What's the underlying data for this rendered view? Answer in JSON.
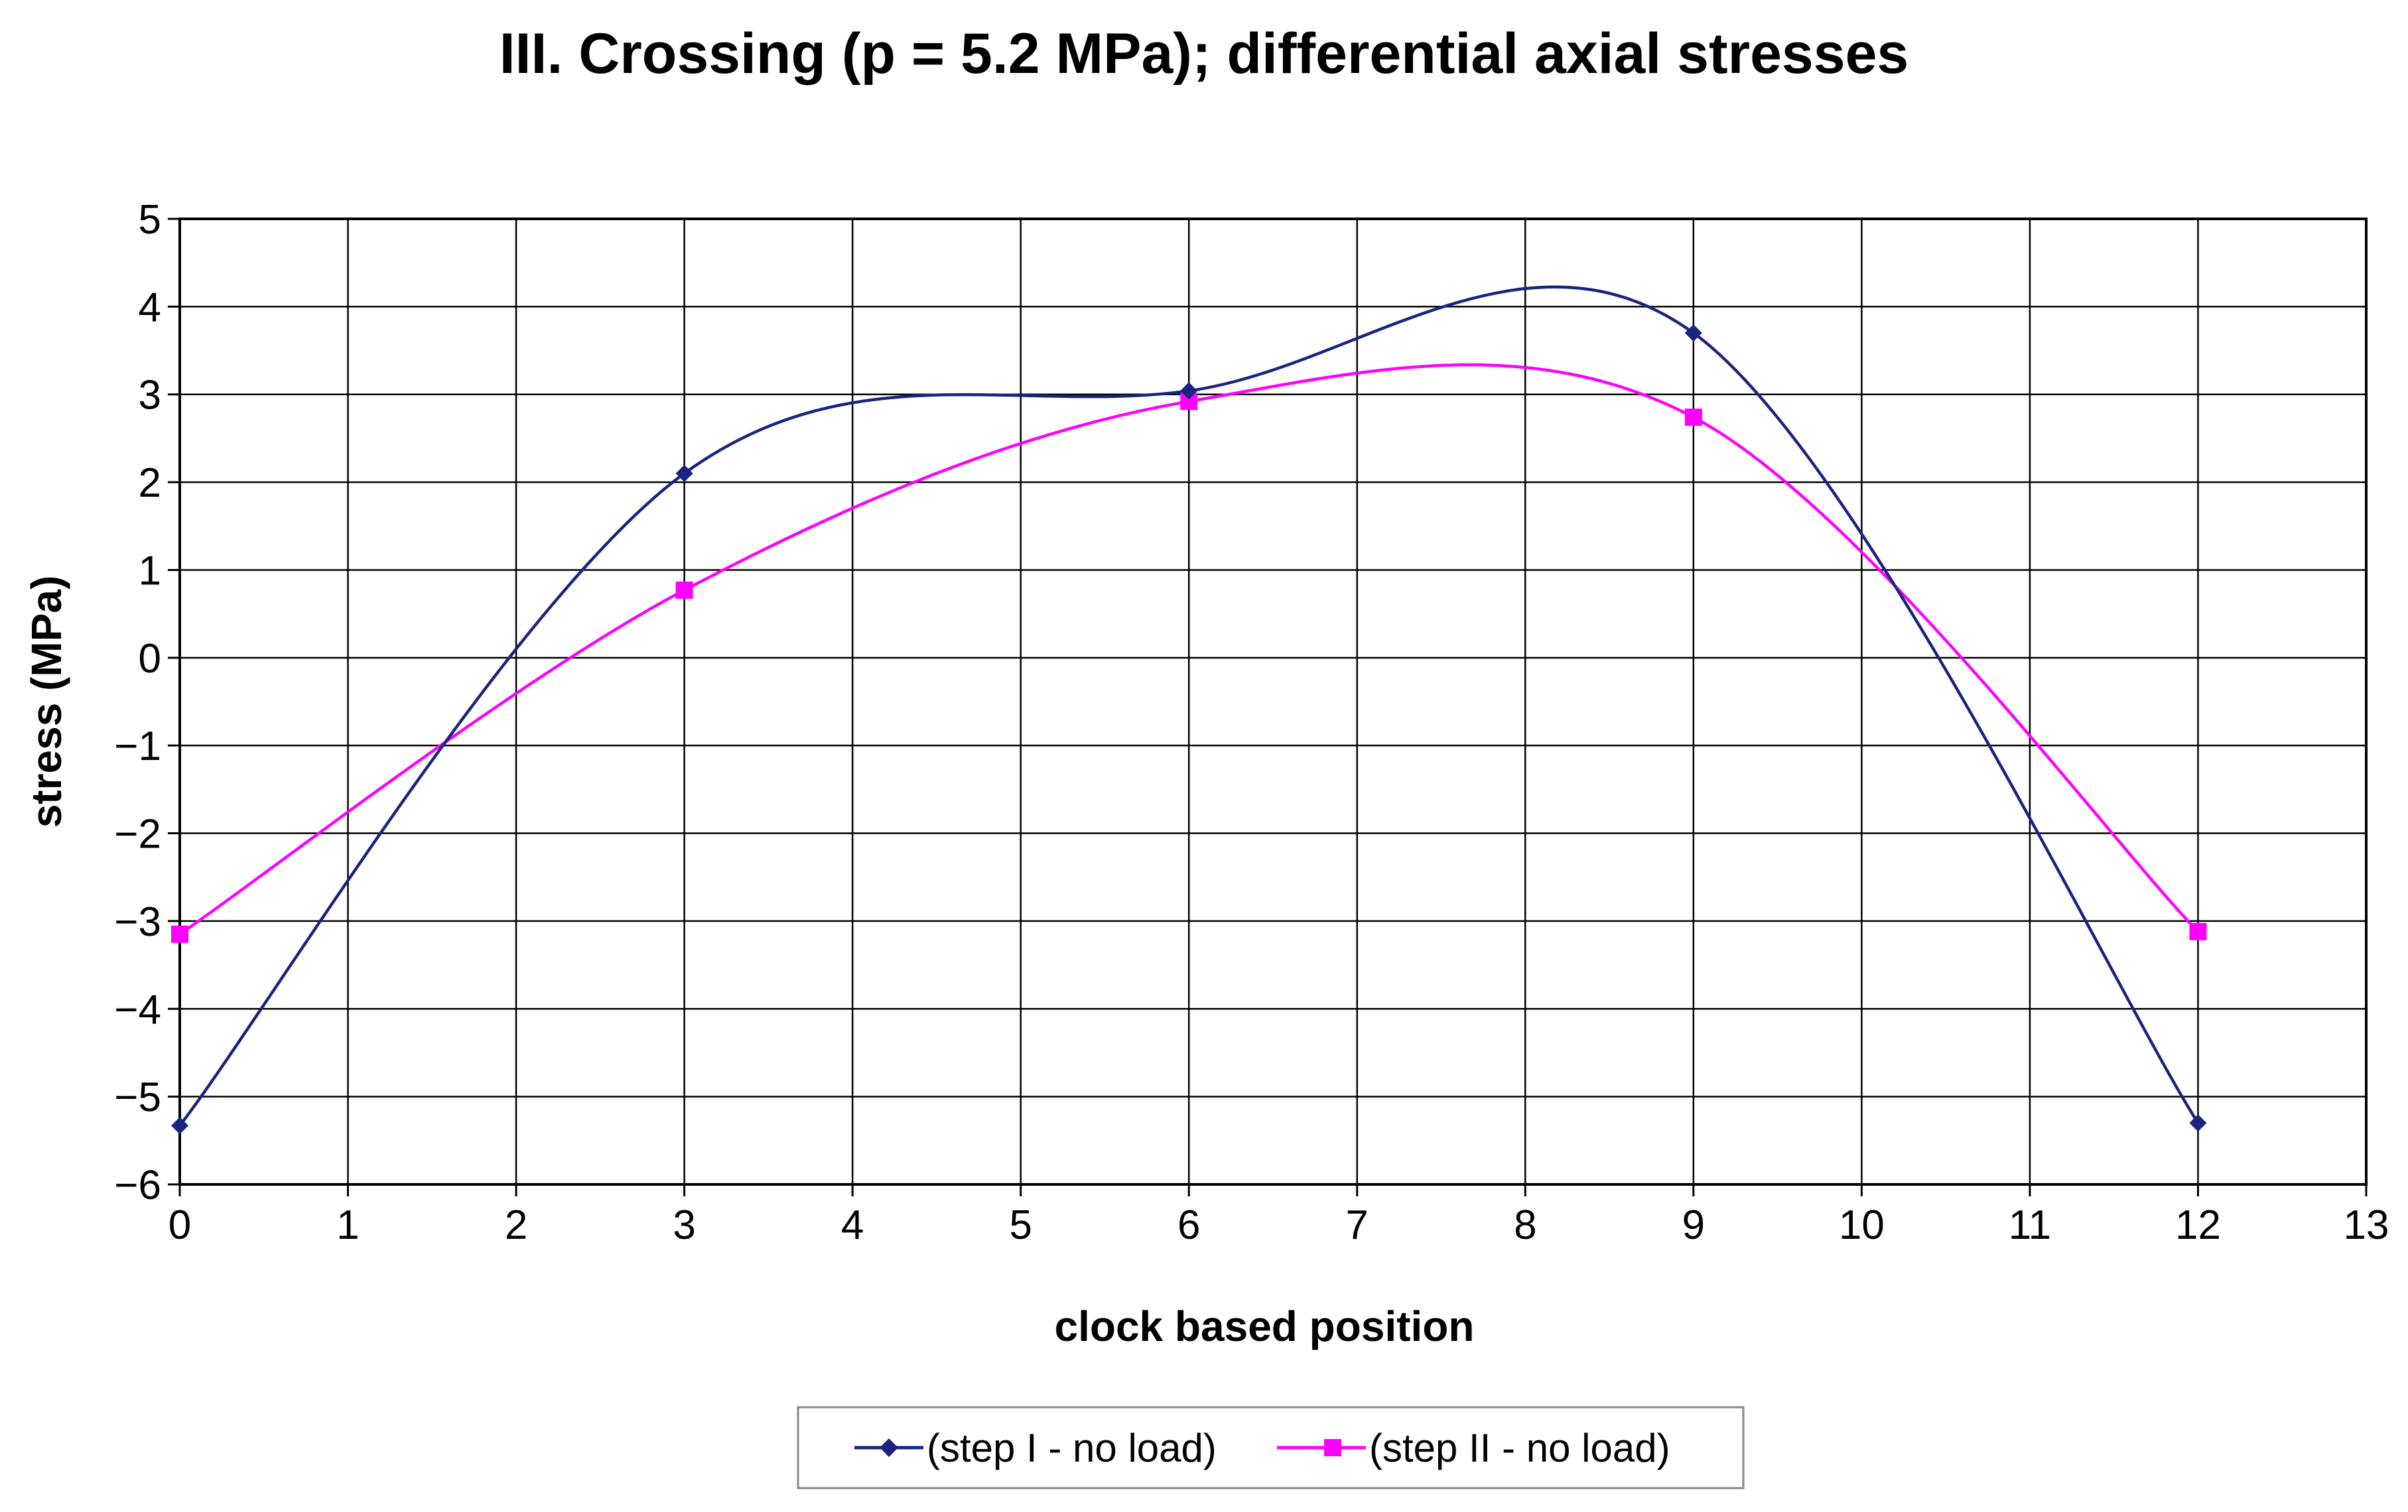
{
  "chart_data": {
    "type": "line",
    "title": "III. Crossing (p = 5.2 MPa); differential axial stresses",
    "xlabel": "clock based position",
    "ylabel": "stress (MPa)",
    "xlim": [
      0,
      13
    ],
    "ylim": [
      -6,
      5
    ],
    "x_ticks": [
      0,
      1,
      2,
      3,
      4,
      5,
      6,
      7,
      8,
      9,
      10,
      11,
      12,
      13
    ],
    "y_ticks": [
      5,
      4,
      3,
      2,
      1,
      0,
      -1,
      -2,
      -3,
      -4,
      -5,
      -6
    ],
    "x_tick_labels": [
      "0",
      "1",
      "2",
      "3",
      "4",
      "5",
      "6",
      "7",
      "8",
      "9",
      "10",
      "11",
      "12",
      "13"
    ],
    "y_tick_labels": [
      "5",
      "4",
      "3",
      "2",
      "1",
      "0",
      "−1",
      "−2",
      "−3",
      "−4",
      "−5",
      "−6"
    ],
    "grid": true,
    "smooth": true,
    "legend_position": "bottom",
    "series": [
      {
        "name": "(step I - no load)",
        "color": "#1a237e",
        "marker": "diamond",
        "x": [
          0,
          3,
          6,
          9,
          12
        ],
        "y": [
          -5.33,
          2.1,
          3.04,
          3.7,
          -5.3
        ]
      },
      {
        "name": "(step II - no load)",
        "color": "#ff00ff",
        "marker": "square",
        "x": [
          0,
          3,
          6,
          9,
          12
        ],
        "y": [
          -3.15,
          0.77,
          2.92,
          2.74,
          -3.12
        ]
      }
    ]
  }
}
